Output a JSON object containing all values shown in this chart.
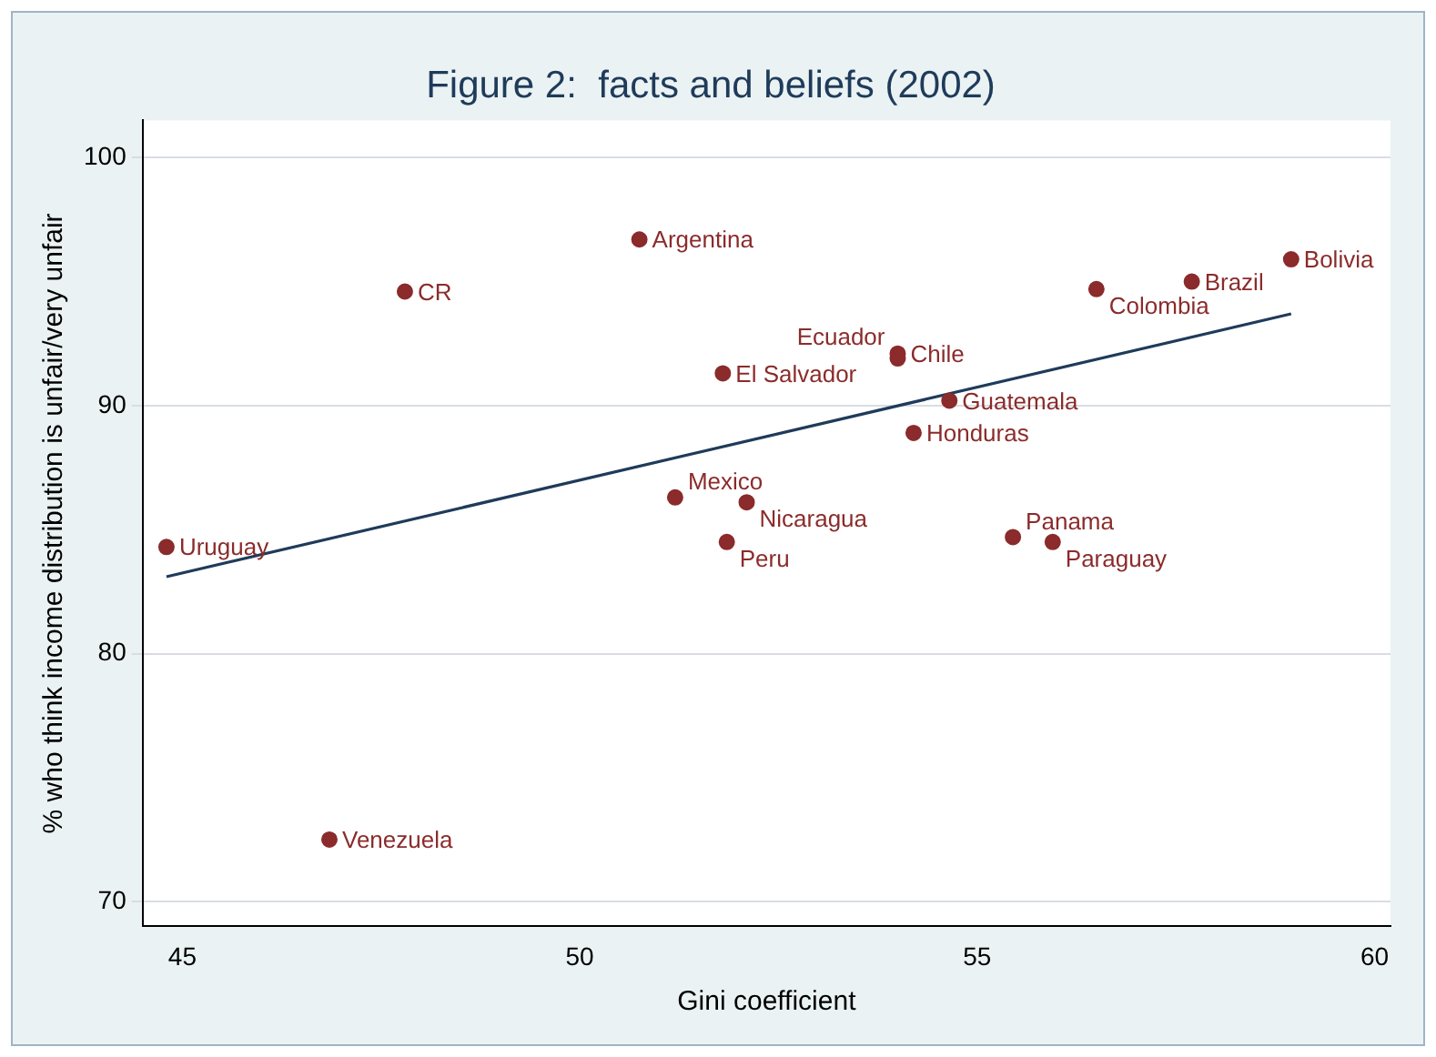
{
  "chart_data": {
    "type": "scatter",
    "title": "Figure 2:  facts and beliefs (2002)",
    "xlabel": "Gini coefficient",
    "ylabel": "% who think income distribution is unfair/very unfair",
    "series": [
      {
        "marker": "circle",
        "color": "#8b2b2b",
        "x": [
          44.8,
          47.8,
          50.75,
          51.8,
          51.2,
          52.1,
          51.85,
          54.0,
          54.0,
          54.65,
          54.2,
          55.45,
          55.95,
          56.5,
          57.7,
          58.95,
          46.85
        ],
        "values": [
          84.3,
          94.6,
          96.7,
          91.3,
          86.3,
          86.1,
          84.5,
          92.1,
          91.9,
          90.2,
          88.9,
          84.7,
          84.5,
          94.7,
          95.0,
          95.9,
          72.5
        ]
      },
      {
        "type": "line",
        "marker": "none",
        "color": "#1f3b5a",
        "x": [
          44.8,
          58.95
        ],
        "values": [
          83.1,
          93.7
        ]
      }
    ],
    "annotations": [
      {
        "text": "Uruguay",
        "x": 44.8,
        "y": 84.3
      },
      {
        "text": "CR",
        "x": 47.8,
        "y": 94.6
      },
      {
        "text": "Argentina",
        "x": 50.75,
        "y": 96.7
      },
      {
        "text": "El Salvador",
        "x": 51.8,
        "y": 91.3
      },
      {
        "text": "Mexico",
        "x": 51.2,
        "y": 86.3
      },
      {
        "text": "Nicaragua",
        "x": 52.1,
        "y": 86.1
      },
      {
        "text": "Peru",
        "x": 51.85,
        "y": 84.5
      },
      {
        "text": "Chile",
        "x": 54.0,
        "y": 92.1
      },
      {
        "text": "Ecuador",
        "x": 54.0,
        "y": 91.9
      },
      {
        "text": "Guatemala",
        "x": 54.65,
        "y": 90.2
      },
      {
        "text": "Honduras",
        "x": 54.2,
        "y": 88.9
      },
      {
        "text": "Panama",
        "x": 55.45,
        "y": 84.7
      },
      {
        "text": "Paraguay",
        "x": 55.95,
        "y": 84.5
      },
      {
        "text": "Colombia",
        "x": 56.5,
        "y": 94.7
      },
      {
        "text": "Brazil",
        "x": 57.7,
        "y": 95.0
      },
      {
        "text": "Bolivia",
        "x": 58.95,
        "y": 95.9
      },
      {
        "text": "Venezuela",
        "x": 46.85,
        "y": 72.5
      }
    ],
    "xlim": [
      44.5,
      60.2
    ],
    "xticks": [
      45,
      50,
      55,
      60
    ],
    "ylim": [
      69,
      101.5
    ],
    "yticks": [
      70,
      80,
      90,
      100
    ],
    "grid": "y",
    "legend": false,
    "line_style": "solid"
  }
}
